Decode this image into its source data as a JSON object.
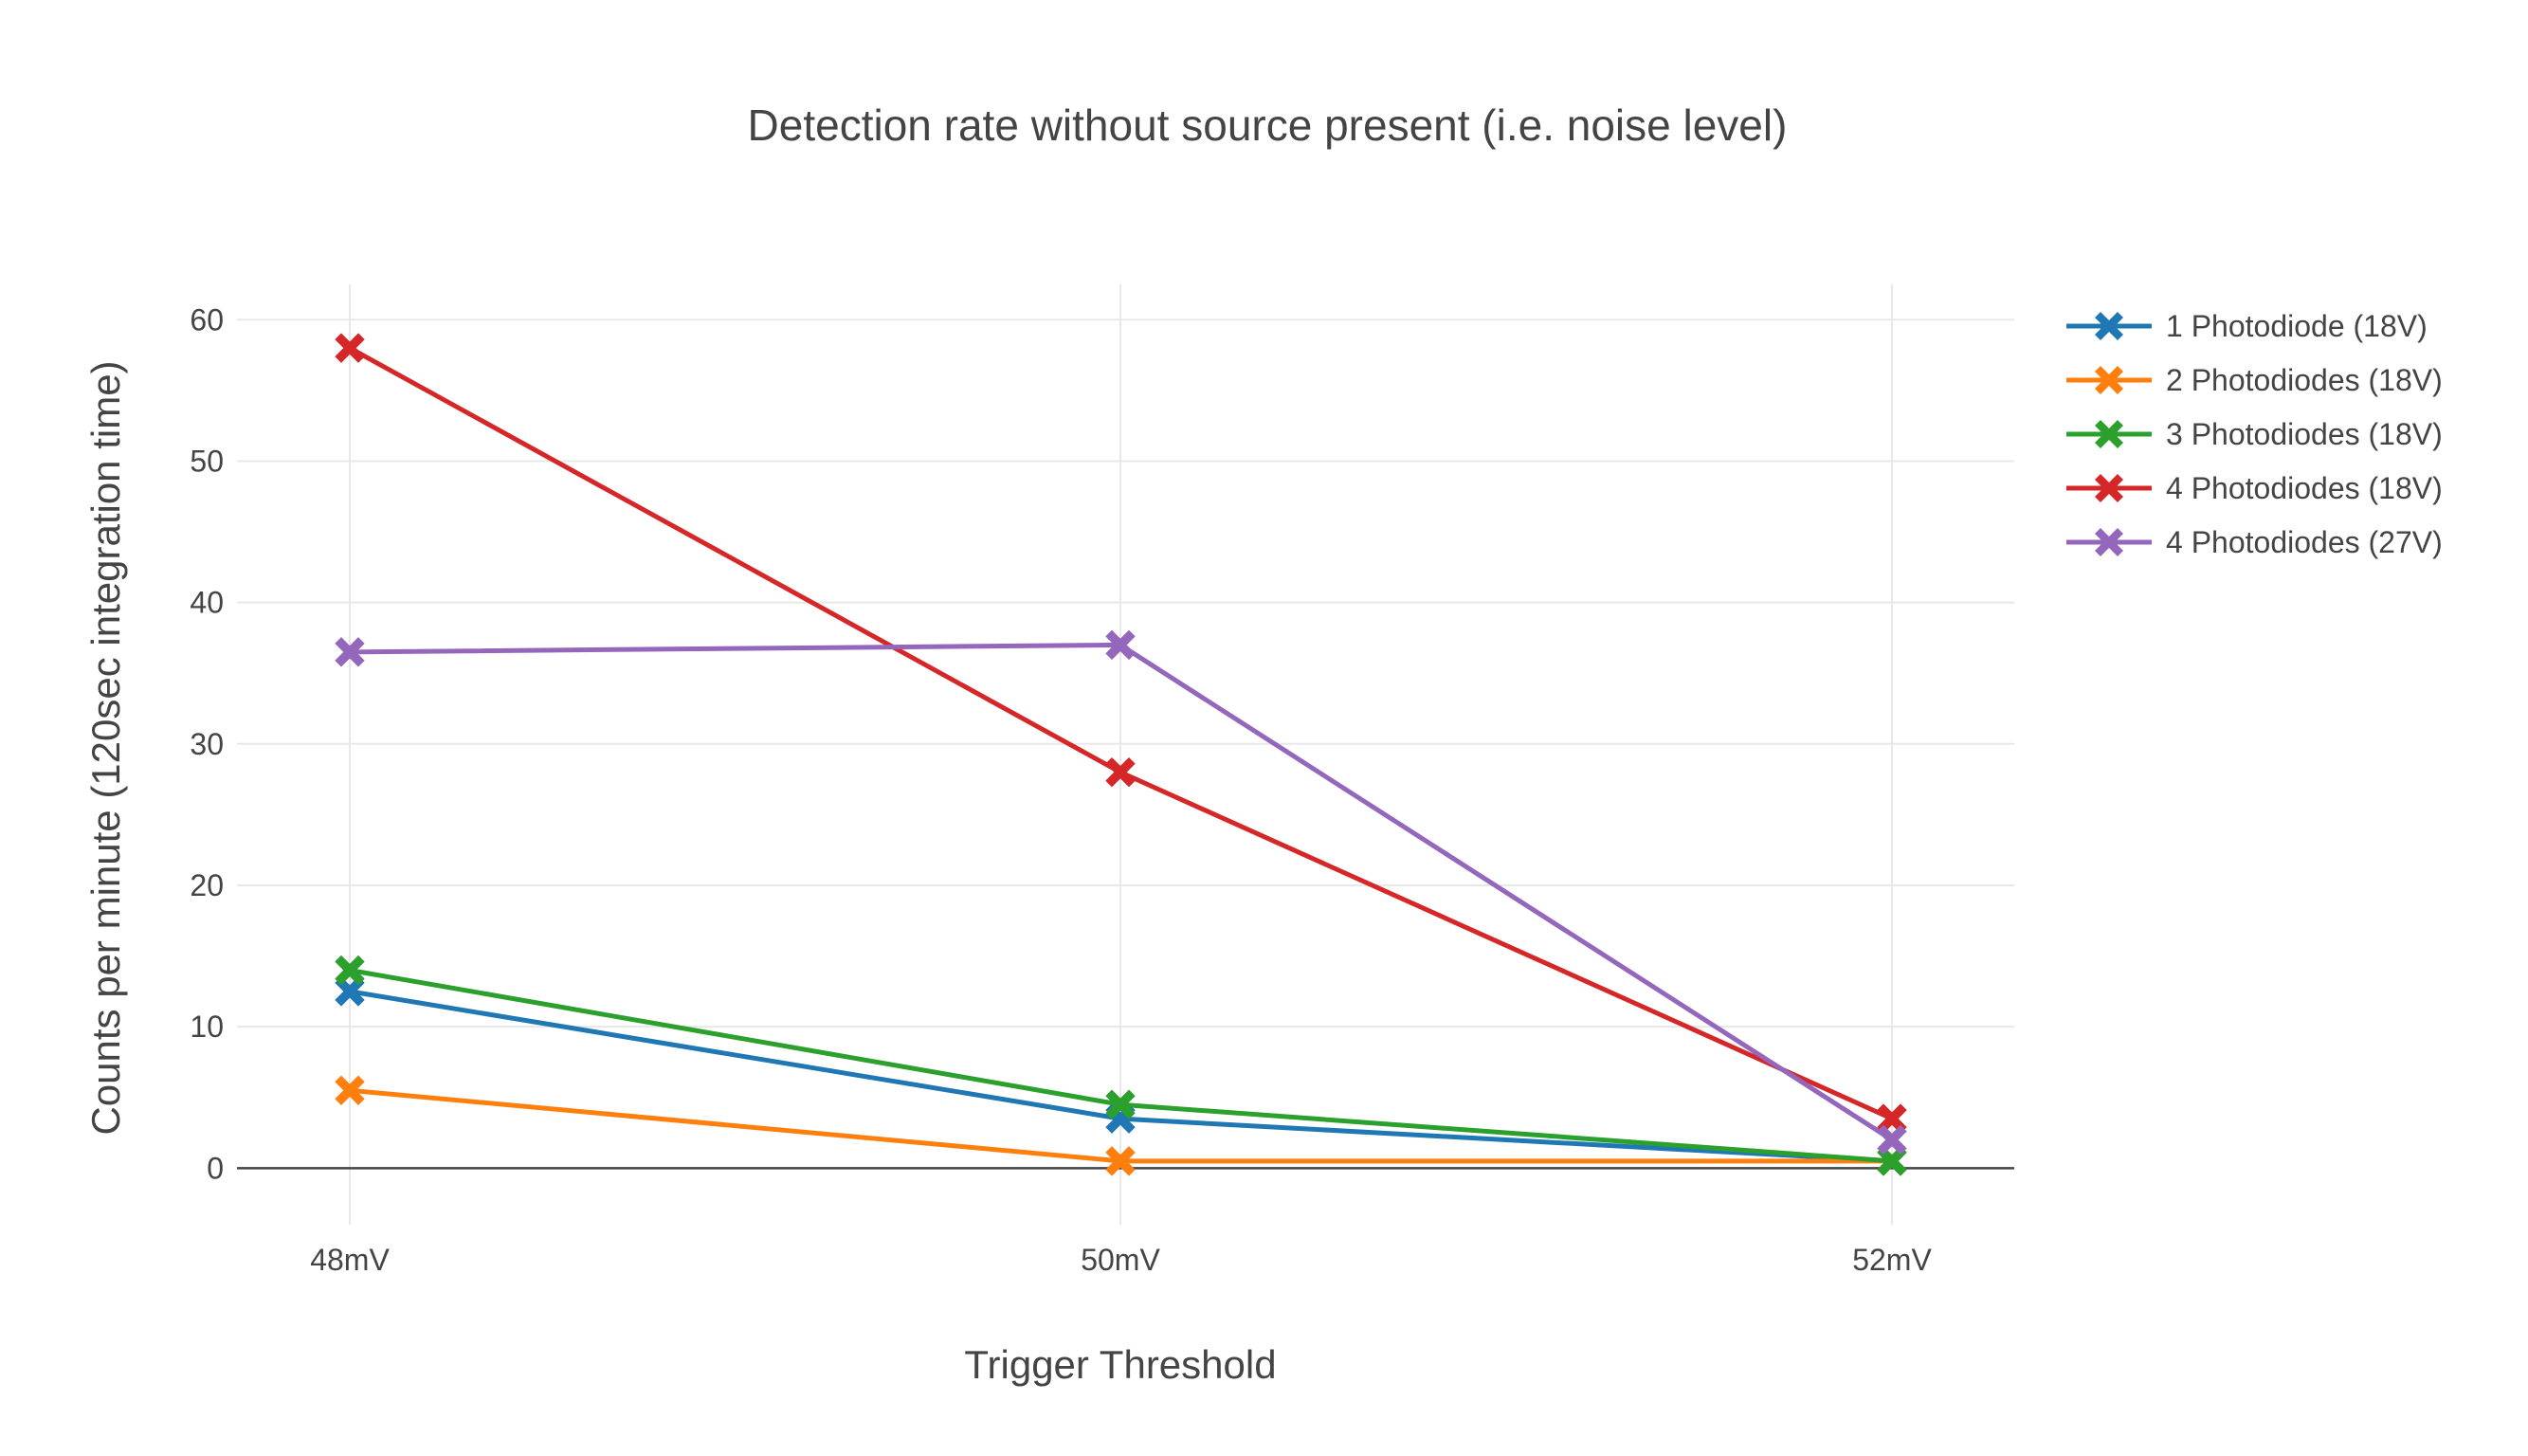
{
  "chart_data": {
    "type": "line",
    "title": "Detection rate without source present (i.e. noise level)",
    "xlabel": "Trigger Threshold",
    "ylabel": "Counts per minute (120sec integration time)",
    "categories": [
      "48mV",
      "50mV",
      "52mV"
    ],
    "y_ticks": [
      "0",
      "10",
      "20",
      "30",
      "40",
      "50",
      "60"
    ],
    "ylim": [
      -4,
      62.5
    ],
    "grid": true,
    "legend_position": "top-right",
    "marker": "x",
    "series": [
      {
        "name": "1 Photodiode (18V)",
        "color": "#1f77b4",
        "values": [
          12.5,
          3.5,
          0.5
        ]
      },
      {
        "name": "2 Photodiodes (18V)",
        "color": "#ff7f0e",
        "values": [
          5.5,
          0.5,
          0.5
        ]
      },
      {
        "name": "3 Photodiodes (18V)",
        "color": "#2ca02c",
        "values": [
          14,
          4.5,
          0.5
        ]
      },
      {
        "name": "4 Photodiodes (18V)",
        "color": "#d62728",
        "values": [
          58,
          28,
          3.5
        ]
      },
      {
        "name": "4 Photodiodes (27V)",
        "color": "#9467bd",
        "values": [
          36.5,
          37,
          2
        ]
      }
    ]
  }
}
